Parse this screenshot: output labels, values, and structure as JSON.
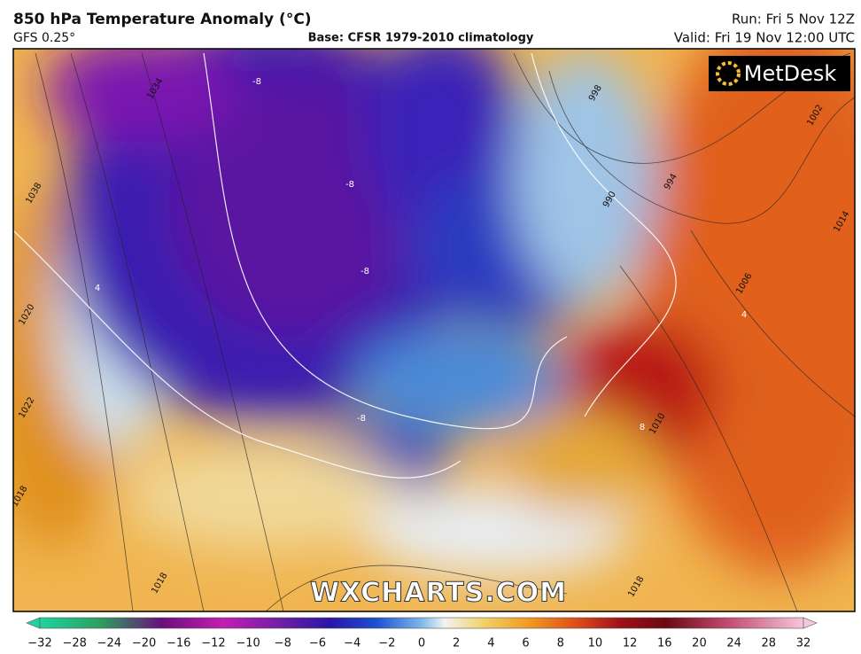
{
  "header": {
    "title": "850 hPa Temperature Anomaly (°C)",
    "model": "GFS 0.25°",
    "base": "Base: CFSR 1979-2010 climatology",
    "run": "Run: Fri 5 Nov 12Z",
    "valid": "Valid: Fri 19 Nov 12:00 UTC"
  },
  "logo": "MetDesk",
  "watermark": "WXCHARTS.COM",
  "colorbar": {
    "labels": [
      "−32",
      "−28",
      "−24",
      "−20",
      "−16",
      "−12",
      "−10",
      "−8",
      "−6",
      "−4",
      "−2",
      "0",
      "2",
      "4",
      "6",
      "8",
      "10",
      "12",
      "16",
      "20",
      "24",
      "28",
      "32"
    ]
  },
  "contour_labels": [
    "1034",
    "1038",
    "1020",
    "1022",
    "1018",
    "1018",
    "998",
    "994",
    "990",
    "1002",
    "1006",
    "1010",
    "1014",
    "1018",
    "-8",
    "-8",
    "-8",
    "-8",
    "4",
    "4",
    "8"
  ]
}
